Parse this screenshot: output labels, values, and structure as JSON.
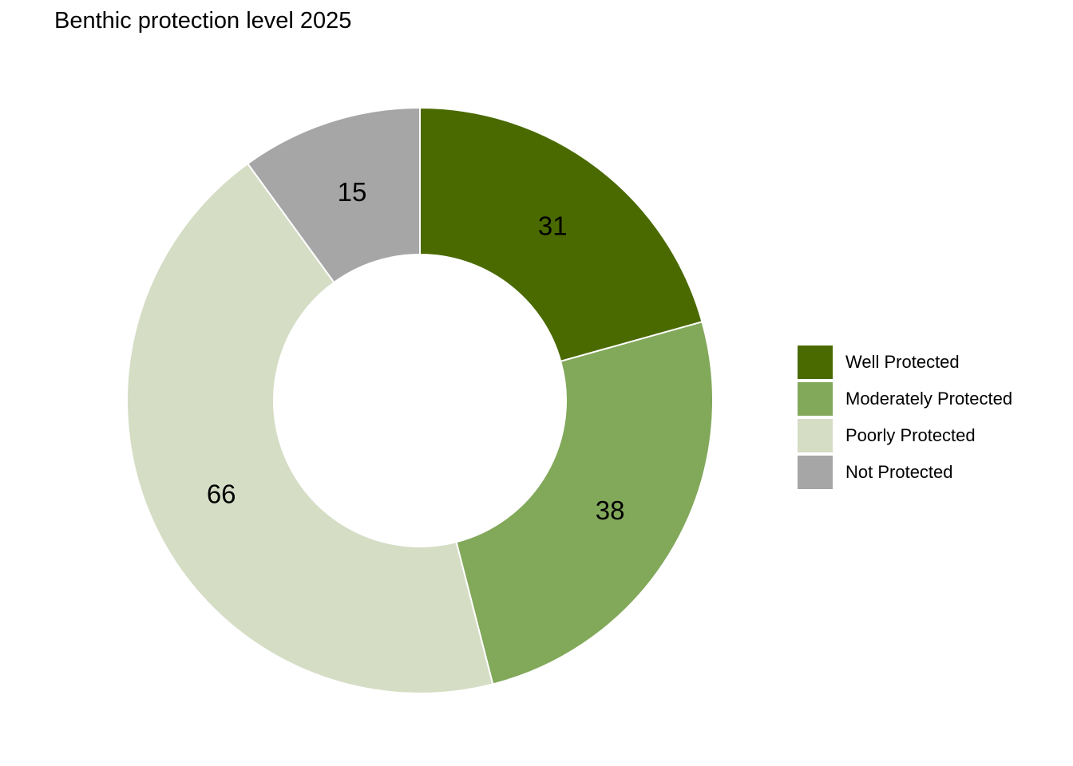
{
  "chart_data": {
    "type": "pie",
    "title": "Benthic protection level 2025",
    "categories": [
      "Well Protected",
      "Moderately Protected",
      "Poorly Protected",
      "Not Protected"
    ],
    "values": [
      31,
      38,
      66,
      15
    ],
    "colors": [
      "#4a6a00",
      "#82a85a",
      "#d5ddc5",
      "#a6a6a6"
    ],
    "donut": true,
    "legend": "right",
    "data_labels": [
      "31",
      "38",
      "66",
      "15"
    ]
  }
}
